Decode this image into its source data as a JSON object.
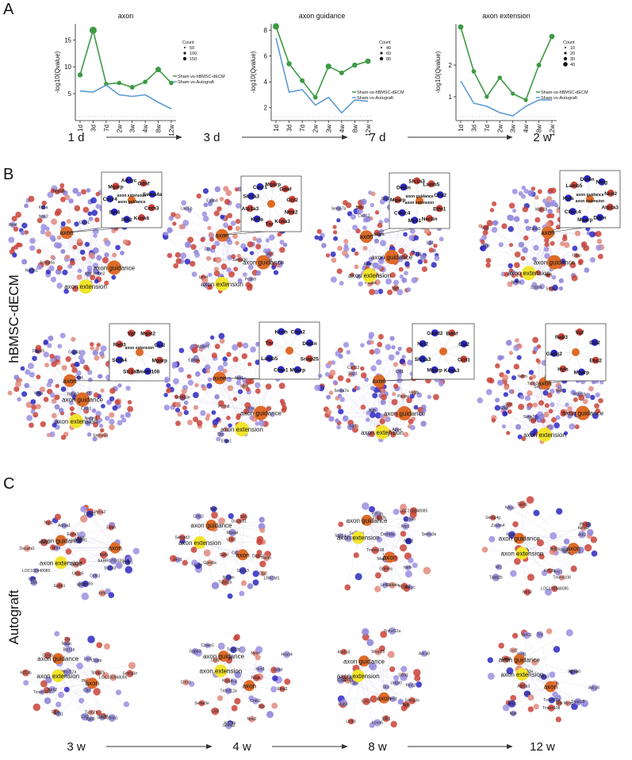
{
  "panel_labels": {
    "a": "A",
    "b": "B",
    "c": "C"
  },
  "row_labels": {
    "hbmsc": "hBMSC-dECM",
    "autograft": "Autograft"
  },
  "timeline_a": [
    "1 d",
    "3 d",
    "7 d",
    "2 w"
  ],
  "timeline_c": [
    "3 w",
    "4 w",
    "8 w",
    "12 w"
  ],
  "colors": {
    "green": "#3d9a43",
    "blue": "#5b9bd5",
    "orange": "#de6b28",
    "yellow": "#f2e42b",
    "red": "#c94338",
    "navy": "#2c28c2",
    "lilac": "#9b8fe0"
  },
  "legend": {
    "count_title": "Count",
    "series_green": "Sham-vs-hBMSC-dECM",
    "series_blue": "Sham-vs-Autograft"
  },
  "chart_data": [
    {
      "type": "line",
      "title": "axon",
      "xlabel": "",
      "ylabel": "-log10(Qvalue)",
      "x": [
        "1d",
        "3d",
        "7d",
        "2w",
        "3w",
        "4w",
        "8w",
        "12w"
      ],
      "ylim": [
        0,
        18
      ],
      "yticks": [
        5,
        10,
        15
      ],
      "count_legend": [
        50,
        100,
        150
      ],
      "series": [
        {
          "name": "Sham-vs-hBMSC-dECM",
          "values": [
            8.5,
            16.8,
            6.8,
            7.0,
            6.2,
            7.2,
            9.5,
            7.0
          ]
        },
        {
          "name": "Sham-vs-Autograft",
          "values": [
            5.5,
            5.3,
            6.6,
            4.8,
            4.5,
            4.8,
            3.4,
            2.2
          ]
        }
      ]
    },
    {
      "type": "line",
      "title": "axon guidance",
      "xlabel": "",
      "ylabel": "-log10(Qvalue)",
      "x": [
        "1d",
        "3d",
        "7d",
        "2w",
        "3w",
        "4w",
        "8w",
        "12w"
      ],
      "ylim": [
        1,
        8.5
      ],
      "yticks": [
        2,
        4,
        6,
        8
      ],
      "count_legend": [
        40,
        60,
        80
      ],
      "series": [
        {
          "name": "Sham-vs-hBMSC-dECM",
          "values": [
            8.3,
            5.4,
            4.1,
            2.8,
            5.2,
            4.7,
            5.3,
            5.6
          ]
        },
        {
          "name": "Sham-vs-Autograft",
          "values": [
            7.4,
            3.2,
            3.4,
            2.2,
            2.8,
            1.6,
            2.6,
            2.5
          ]
        }
      ]
    },
    {
      "type": "line",
      "title": "axon extension",
      "xlabel": "",
      "ylabel": "-log10(Qvalue)",
      "x": [
        "1d",
        "3d",
        "7d",
        "2w",
        "3w",
        "4w",
        "8w",
        "12w"
      ],
      "ylim": [
        0.25,
        3.3
      ],
      "yticks": [
        1,
        2
      ],
      "count_legend": [
        10,
        20,
        30,
        40
      ],
      "series": [
        {
          "name": "Sham-vs-hBMSC-dECM",
          "values": [
            3.2,
            1.8,
            1.0,
            1.6,
            1.1,
            0.9,
            2.0,
            2.9
          ]
        },
        {
          "name": "Sham-vs-Autograft",
          "values": [
            1.5,
            0.8,
            0.7,
            0.5,
            0.4,
            0.7,
            0.9,
            0.9
          ]
        }
      ]
    }
  ],
  "networks": {
    "b": [
      {
        "time": "1 d",
        "zoom": [
          "Cntn3",
          "Kcnk6",
          "Ptk2",
          "Syt4",
          "Cxcr4",
          "Mgarp",
          "Adcyc",
          "Gdnf",
          "Sema4a",
          "axon extension",
          "axon guidance"
        ],
        "labels": [
          "Nectn1",
          "Ntrk2",
          "Sema6a",
          "Robo2",
          "Dpysl5",
          "Klf7",
          "Gap43",
          "Rtn4",
          "Cntn1",
          "Kif5a"
        ],
        "hubs": {
          "axon": "axon",
          "guidance": "axon guidance",
          "extension": "axon extension"
        }
      },
      {
        "time": "3 d",
        "zoom": [
          "Ntrk2",
          "Kcna3",
          "Tnr",
          "Kif5a",
          "Atp1a3",
          "Slc1a3",
          "Casr1",
          "Mgarp",
          "Gdnf",
          "Ccr2"
        ],
        "labels": [
          "Lrrc4",
          "Sema3e",
          "Nrp1",
          "Pcdh8",
          "Epha4",
          "Dcc",
          "Ntn1",
          "Unc5b",
          "Efnb1",
          "Ablim1"
        ],
        "hubs": {
          "axon": "axon",
          "guidance": "axon guidance",
          "extension": "axon extension"
        }
      },
      {
        "time": "7 d",
        "zoom": [
          "Etfn1",
          "Nectin",
          "Myo1",
          "Cthrc4",
          "Mgarp",
          "Dedin",
          "Slc1a3",
          "Lamb5",
          "Ctla2",
          "axon guidance",
          "axon extension"
        ],
        "labels": [
          "Pappa",
          "Vegfa",
          "Spp1",
          "Ngfr",
          "Cxcl12",
          "Sema7a",
          "Apoe",
          "Bdnf",
          "Lgi1",
          "Chl1"
        ],
        "hubs": {
          "axon": "axon",
          "guidance": "axon guidance",
          "extension": "axon extension"
        }
      },
      {
        "time": "2 w",
        "zoom": [
          "Atp1a3",
          "Ddcn",
          "Mgarp",
          "Cthrc4",
          "Hyls",
          "Lamb5",
          "Dedin",
          "Nlhg",
          "Ncn2",
          "axon guidance",
          "axon extension"
        ],
        "labels": [
          "Nefl",
          "Nefm",
          "Prph",
          "Stmn2",
          "Tubb3",
          "Snap25",
          "Syt1",
          "Map1b",
          "Gfap",
          "S100b"
        ],
        "hubs": {
          "axon": "axon",
          "guidance": "axon guidance",
          "extension": "axon extension"
        }
      },
      {
        "time": "3 w",
        "zoom": [
          "Mgarp",
          "Tmem108",
          "Slc1a3",
          "Srrm4",
          "Rab3",
          "Vgf",
          "Mgat2",
          "Ccl2",
          "axon extension"
        ],
        "labels": [
          "Nectn1",
          "Ntrk2",
          "Sema6a",
          "Robo2",
          "Dpysl5",
          "Klf7",
          "Gap43",
          "Rtn4",
          "Cntn1",
          "Kif5a"
        ],
        "hubs": {
          "axon": "axon",
          "guidance": "axon guidance",
          "extension": "axon extension"
        }
      },
      {
        "time": "4 w",
        "zoom": [
          "Snap25",
          "Mgarp",
          "Cntn1",
          "Lamb5",
          "Tnr",
          "Kcnh",
          "Cntn2",
          "Dedin"
        ],
        "labels": [
          "Lrrc4",
          "Sema3e",
          "Nrp1",
          "Pcdh8",
          "Epha4",
          "Dcc",
          "Ntn1",
          "Unc5b",
          "Efnb1",
          "Ablim1"
        ],
        "hubs": {
          "axon": "axon",
          "guidance": "axon guidance",
          "extension": "axon extension"
        }
      },
      {
        "time": "8 w",
        "zoom": [
          "Ccn1",
          "Kcna3",
          "Mgarp",
          "Slc1a3",
          "Ncl2",
          "Gadd2",
          "Bdnf",
          "Csl2"
        ],
        "labels": [
          "Pappa",
          "Vegfa",
          "Spp1",
          "Ngfr",
          "Cxcl12",
          "Sema7a",
          "Apoe",
          "Bdnf",
          "Lgi1",
          "Chl1"
        ],
        "hubs": {
          "axon": "axon",
          "guidance": "axon guidance",
          "extension": "axon extension"
        }
      },
      {
        "time": "12 w",
        "zoom": [
          "Ebc2",
          "Mgarp",
          "Hyls",
          "Gadg2",
          "Rab3",
          "Vgf",
          "Ccl2"
        ],
        "labels": [
          "Nefl",
          "Nefm",
          "Prph",
          "Stmn2",
          "Tubb3",
          "Snap25",
          "Syt1",
          "Map1b",
          "Gfap",
          "S100b"
        ],
        "hubs": {
          "axon": "axon",
          "guidance": "axon guidance",
          "extension": "axon extension"
        }
      }
    ],
    "c": [
      {
        "time": "1 d",
        "labels": [
          "Lrp1",
          "Ecea3",
          "Lrrk2",
          "Efnb1",
          "Uncg5",
          "LOC100948085",
          "Shh",
          "Epbb1",
          "Nrp1",
          "Sema5b",
          "Dscaml1",
          "Ntfb",
          "AABR07033324.1",
          "Cxcr4",
          "Bdnf",
          "Nefh",
          "Slc1a3",
          "Cntn1",
          "LRRTM1",
          "Kcna2",
          "Ncc2",
          "Ppfia2",
          "Emm",
          "Crtac1",
          "Adora1"
        ],
        "hubs": {
          "axon": "axon",
          "guidance": "axon guidance",
          "extension": "axon extension"
        }
      },
      {
        "time": "3 d",
        "labels": [
          "Tubb2b",
          "Gdnf",
          "Lrrk2",
          "Shh",
          "Nrcam",
          "Crtac1",
          "Dscaml1",
          "LRRTM1",
          "Bdnf",
          "Nefm",
          "Semad3",
          "Slc1a3",
          "Ngfr",
          "Cntn2",
          "Gpm6a",
          "Gap43",
          "Ctp2",
          "Fez1",
          "Mgarp"
        ],
        "hubs": {
          "axon": "axon",
          "guidance": "axon guidance",
          "extension": "axon extension"
        }
      },
      {
        "time": "7 d",
        "labels": [
          "Uncd5",
          "Sema3e",
          "LOC100948085",
          "Sema4g",
          "Lrrk2",
          "Tubb2b",
          "Tubb4a",
          "Nrp1",
          "Mapk8ip3",
          "Cryab",
          "Myt14",
          "Kcna2",
          "Tmem108",
          "Ntrk2",
          "Gpm6a",
          "Nefh",
          "Adcyc",
          "Kif13b",
          "Dnmt3a"
        ],
        "hubs": {
          "axon": "axon",
          "guidance": "axon guidance",
          "extension": "axon extension"
        }
      },
      {
        "time": "2 w",
        "labels": [
          "Adrz",
          "Zswim4",
          "Plxdc1",
          "Tubb2b",
          "LOC100948085",
          "Nit1",
          "Sema4g",
          "Nfasc",
          "Kcna2",
          "Tiam1",
          "Pappa",
          "Fez1",
          "Mapk8ip3",
          "Ntrk2",
          "Rasgrf1",
          "Tmem108",
          "Kif13b",
          "Ngfr"
        ],
        "hubs": {
          "axon": "axon",
          "guidance": "axon guidance",
          "extension": "axon extension"
        }
      },
      {
        "time": "3 w",
        "labels": [
          "Lrp1",
          "Tubb2b",
          "Sema3e",
          "Gdnf",
          "Ctp2",
          "Plxna4",
          "LOC100948085",
          "Ntrk2",
          "Bcl11b",
          "Kif13b",
          "Tnfrsf12a",
          "Stmn1",
          "Tnr",
          "Cryab",
          "Cbarp",
          "Igsf8",
          "Ccl2",
          "Hcn1",
          "Snap25",
          "Gna1",
          "Tmem108",
          "Nfasc",
          "Dlnb"
        ],
        "hubs": {
          "axon": "axon",
          "guidance": "axon guidance",
          "extension": "axon extension"
        }
      },
      {
        "time": "4 w",
        "labels": [
          "Cbarp1",
          "Nexs",
          "Efna2",
          "Gdnf",
          "Cntn2",
          "Tubb2b",
          "Sema3e",
          "Ntrk2",
          "Kcnj3",
          "Tnfrsf12a",
          "Gap43",
          "Dcx",
          "Tnr",
          "Hcn1",
          "Blc11b",
          "Kif13b",
          "Sema2",
          "Lrpt2",
          "Nfasc",
          "Ccl2",
          "Cntn1",
          "Hsvn4"
        ],
        "hubs": {
          "axon": "axon",
          "guidance": "axon guidance",
          "extension": "axon extension"
        }
      },
      {
        "time": "8 w",
        "labels": [
          "Gfra3",
          "Chl1",
          "Sema3e",
          "Snap25",
          "Ngfr",
          "Rab3",
          "Tnfrsf12a",
          "Gfra1",
          "Sdk1",
          "Neil1",
          "Atp1a3",
          "Dcx",
          "Fmn2",
          "Kcna6",
          "Semg",
          "Uchl1",
          "Crtc2",
          "Adcy8",
          "Uncb0",
          "Ccl2"
        ],
        "hubs": {
          "axon": "axon",
          "guidance": "axon guidance",
          "extension": "axon extension"
        }
      },
      {
        "time": "12 w",
        "labels": [
          "Ngfr",
          "Gfra3",
          "Shh",
          "Sema3e",
          "Snap25",
          "Adcy8",
          "Tnfrsf12a",
          "Tnr",
          "Rab3",
          "Kcna6",
          "Ccl2",
          "Myot",
          "Uchl1",
          "Dcx",
          "Cck",
          "Atp1a3",
          "Ank1",
          "Tmem108",
          "Nefh",
          "Nefl1",
          "Lrpt2"
        ],
        "hubs": {
          "axon": "axon",
          "guidance": "axon guidance",
          "extension": "axon extension"
        }
      }
    ]
  }
}
